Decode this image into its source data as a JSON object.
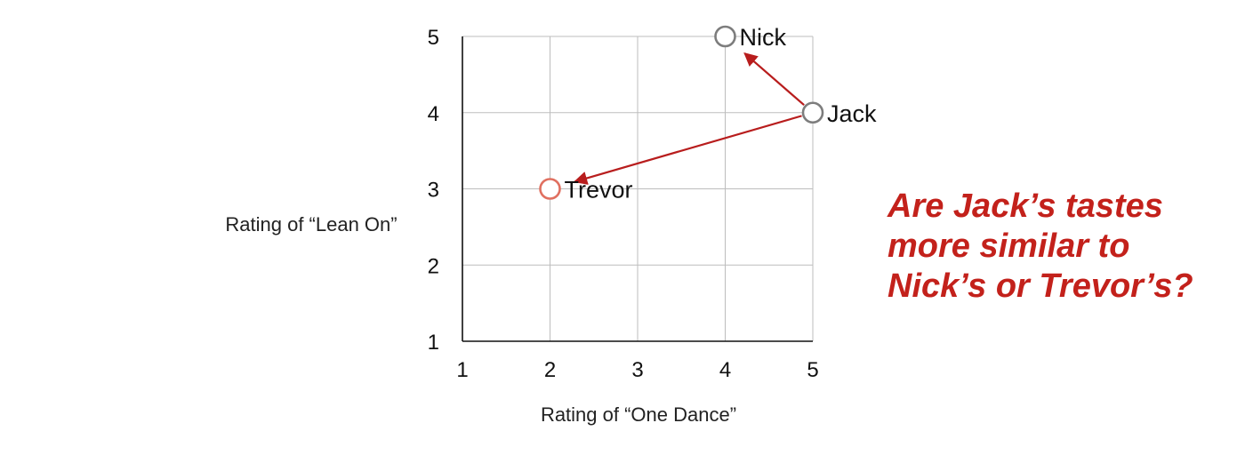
{
  "chart_data": {
    "type": "scatter",
    "xlabel": "Rating of “One Dance”",
    "ylabel": "Rating of “Lean On”",
    "xlim": [
      1,
      5
    ],
    "ylim": [
      1,
      5
    ],
    "xticks": [
      "1",
      "2",
      "3",
      "4",
      "5"
    ],
    "yticks": [
      "1",
      "2",
      "3",
      "4",
      "5"
    ],
    "grid": true,
    "points": [
      {
        "label": "Nick",
        "x": 4,
        "y": 5,
        "color": "#7d7d7d"
      },
      {
        "label": "Jack",
        "x": 5,
        "y": 4,
        "color": "#7d7d7d"
      },
      {
        "label": "Trevor",
        "x": 2,
        "y": 3,
        "color": "#e07060"
      }
    ],
    "arrows": [
      {
        "from": "Jack",
        "to": "Nick"
      },
      {
        "from": "Jack",
        "to": "Trevor"
      }
    ],
    "arrow_color": "#b81d1d"
  },
  "question": {
    "lines": [
      "Are Jack’s tastes",
      "more similar to",
      "Nick’s or Trevor’s?"
    ],
    "color": "#c3211b"
  }
}
